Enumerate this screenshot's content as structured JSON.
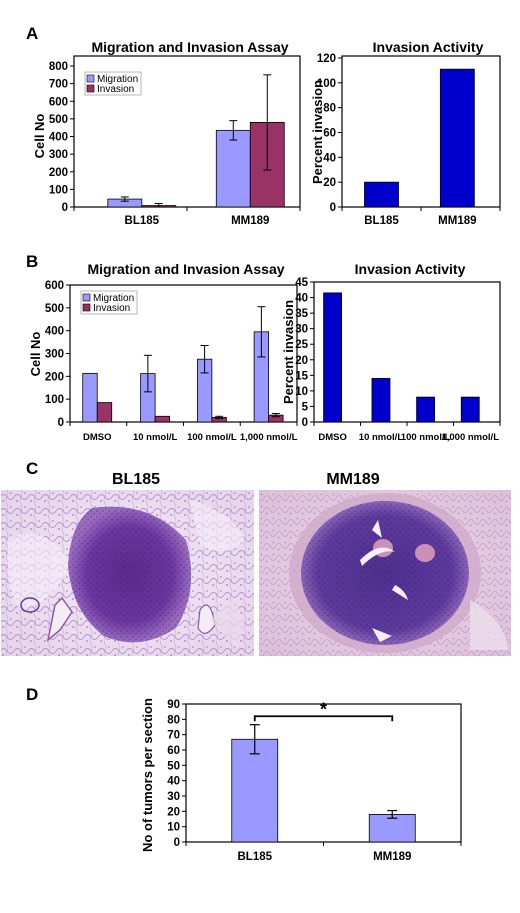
{
  "panels": {
    "a": "A",
    "b": "B",
    "c": "C",
    "d": "D"
  },
  "colors": {
    "migration": "#9999ff",
    "invasion": "#993366",
    "invasion_activity": "#0000cc",
    "tumors": "#9999ff"
  },
  "chart_data": [
    {
      "id": "A-left",
      "type": "bar",
      "title": "Migration and Invasion Assay",
      "xlabel": "",
      "ylabel": "Cell No",
      "categories": [
        "BL185",
        "MM189"
      ],
      "series": [
        {
          "name": "Migration",
          "values": [
            45,
            435
          ],
          "errors": [
            12,
            55
          ]
        },
        {
          "name": "Invasion",
          "values": [
            8,
            480
          ],
          "errors": [
            12,
            270
          ]
        }
      ],
      "ylim": [
        0,
        800
      ],
      "yticks": [
        "0",
        "100",
        "200",
        "300",
        "400",
        "500",
        "600",
        "700",
        "800"
      ],
      "legend": "top-left"
    },
    {
      "id": "A-right",
      "type": "bar",
      "title": "Invasion Activity",
      "xlabel": "",
      "ylabel": "Percent invasion",
      "categories": [
        "BL185",
        "MM189"
      ],
      "values": [
        20,
        111
      ],
      "ylim": [
        0,
        120
      ],
      "yticks": [
        "0",
        "20",
        "40",
        "60",
        "80",
        "100",
        "120"
      ]
    },
    {
      "id": "B-left",
      "type": "bar",
      "title": "Migration and Invasion Assay",
      "xlabel": "",
      "ylabel": "Cell No",
      "categories": [
        "DMSO",
        "10 nmol/L",
        "100 nmol/L",
        "1,000 nmol/L"
      ],
      "series": [
        {
          "name": "Migration",
          "values": [
            213,
            212,
            275,
            395
          ],
          "errors": [
            0,
            80,
            60,
            110
          ]
        },
        {
          "name": "Invasion",
          "values": [
            85,
            25,
            20,
            30
          ],
          "errors": [
            0,
            0,
            5,
            7
          ]
        }
      ],
      "ylim": [
        0,
        600
      ],
      "yticks": [
        "0",
        "100",
        "200",
        "300",
        "400",
        "500",
        "600"
      ],
      "legend": "top-left"
    },
    {
      "id": "B-right",
      "type": "bar",
      "title": "Invasion Activity",
      "xlabel": "",
      "ylabel": "Percent invasion",
      "categories": [
        "DMSO",
        "10 nmol/L",
        "100 nmol/L",
        "1,000 nmol/L"
      ],
      "values": [
        41.5,
        14,
        8,
        8
      ],
      "ylim": [
        0,
        45
      ],
      "yticks": [
        "0",
        "5",
        "10",
        "15",
        "20",
        "25",
        "30",
        "35",
        "40",
        "45"
      ]
    },
    {
      "id": "D",
      "type": "bar",
      "title": "",
      "xlabel": "",
      "ylabel": "No of tumors per section",
      "categories": [
        "BL185",
        "MM189"
      ],
      "values": [
        67,
        18
      ],
      "errors": [
        9.5,
        2.5
      ],
      "ylim": [
        0,
        90
      ],
      "yticks": [
        "0",
        "10",
        "20",
        "30",
        "40",
        "50",
        "60",
        "70",
        "80",
        "90"
      ],
      "annotation": "*"
    }
  ],
  "images": {
    "left_label": "BL185",
    "right_label": "MM189"
  }
}
